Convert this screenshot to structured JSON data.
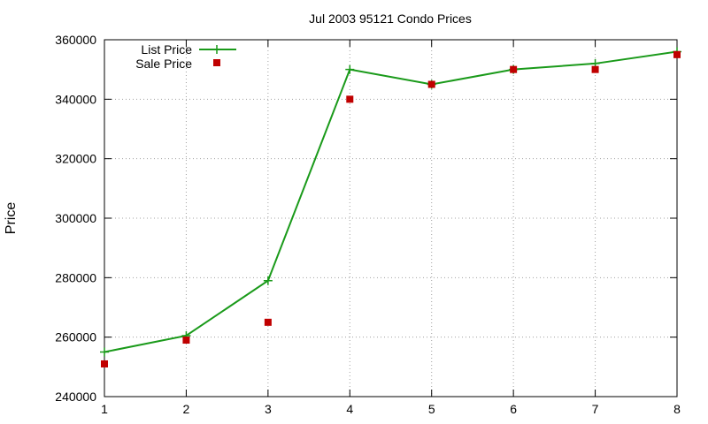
{
  "chart_data": {
    "type": "line",
    "title": "Jul 2003 95121 Condo Prices",
    "xlabel": "",
    "ylabel": "Price",
    "xlim": [
      1,
      8
    ],
    "ylim": [
      240000,
      360000
    ],
    "x_ticks": [
      1,
      2,
      3,
      4,
      5,
      6,
      7,
      8
    ],
    "y_ticks": [
      240000,
      260000,
      280000,
      300000,
      320000,
      340000,
      360000
    ],
    "grid": true,
    "legend_position": "top-left",
    "series": [
      {
        "name": "List Price",
        "style": "line-with-plus-markers",
        "color": "#1a9a1a",
        "x": [
          1,
          2,
          3,
          4,
          5,
          6,
          7,
          8
        ],
        "values": [
          255000,
          260500,
          279000,
          350000,
          345000,
          350000,
          352000,
          356000
        ]
      },
      {
        "name": "Sale Price",
        "style": "square-markers",
        "color": "#c00000",
        "x": [
          1,
          2,
          3,
          4,
          5,
          6,
          7,
          8
        ],
        "values": [
          251000,
          259000,
          265000,
          340000,
          345000,
          350000,
          350000,
          355000
        ]
      }
    ]
  }
}
